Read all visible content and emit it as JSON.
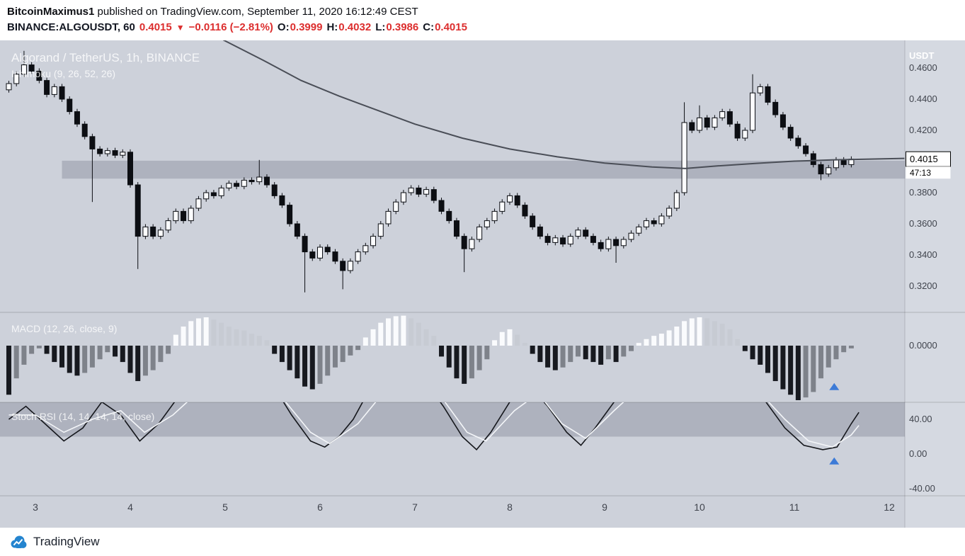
{
  "header": {
    "author": "BitcoinMaximus1",
    "attribution": " published on TradingView.com, September 11, 2020 16:12:49 CEST",
    "quote": {
      "symbol": "BINANCE:ALGOUSDT, 60",
      "last": "0.4015",
      "direction": "▼",
      "change": "−0.0116 (−2.81%)",
      "o_label": "O:",
      "o": "0.3999",
      "h_label": "H:",
      "h": "0.4032",
      "l_label": "L:",
      "l": "0.3986",
      "c_label": "C:",
      "c": "0.4015"
    }
  },
  "footer": {
    "brand": "TradingView"
  },
  "colors": {
    "negative": "#dc2e2e",
    "chart_bg": "#cdd1da",
    "axis_bg": "#d5d9e1",
    "band": "rgba(123,130,144,0.38)",
    "marker_blue": "#3d7bd7",
    "axis_text": "#40444d",
    "overlay_text": "rgba(255,255,255,0.8)",
    "candle": "#0c0e13",
    "baseline": "#4a4e57"
  },
  "chart_data": {
    "type": "candlestick",
    "title": "Algorand / TetherUS, 1h, BINANCE",
    "indicators": {
      "ichimoku_label": "Ichimoku (9, 26, 52, 26)",
      "macd_label": "MACD (12, 26, close, 9)",
      "stoch_label": "Stoch RSI (14, 14, 14, 14, close)"
    },
    "axis_currency": "USDT",
    "price_tag": {
      "price": "0.4015",
      "countdown": "47:13"
    },
    "x_axis": {
      "ticks": [
        3,
        4,
        5,
        6,
        7,
        8,
        9,
        10,
        11,
        12
      ],
      "unit": "September day"
    },
    "price_axis": {
      "range_visible": [
        0.301,
        0.478
      ],
      "ticks": [
        {
          "v": 0.46,
          "label": "0.4600"
        },
        {
          "v": 0.44,
          "label": "0.4400"
        },
        {
          "v": 0.42,
          "label": "0.4200"
        },
        {
          "v": 0.38,
          "label": "0.3800"
        },
        {
          "v": 0.36,
          "label": "0.3600"
        },
        {
          "v": 0.34,
          "label": "0.3400"
        },
        {
          "v": 0.32,
          "label": "0.3200"
        }
      ]
    },
    "macd_axis": {
      "ticks": [
        {
          "v": 0,
          "label": "0.0000"
        }
      ]
    },
    "stoch_axis": {
      "ticks": [
        {
          "v": 40,
          "label": "40.00"
        },
        {
          "v": 0,
          "label": "0.00"
        },
        {
          "v": -40,
          "label": "-40.00"
        }
      ]
    },
    "support_band": {
      "from_t": 3.28,
      "price_top": 0.4005,
      "price_bottom": 0.389
    },
    "candles": {
      "t0": 2.72,
      "dt": 0.08,
      "open_first": 0.446,
      "default_wick": 0.0018,
      "closes": [
        0.45,
        0.456,
        0.462,
        0.458,
        0.452,
        0.443,
        0.448,
        0.44,
        0.432,
        0.424,
        0.416,
        0.408,
        0.405,
        0.407,
        0.404,
        0.406,
        0.385,
        0.352,
        0.358,
        0.352,
        0.356,
        0.362,
        0.368,
        0.362,
        0.37,
        0.376,
        0.38,
        0.378,
        0.383,
        0.386,
        0.384,
        0.388,
        0.387,
        0.39,
        0.385,
        0.378,
        0.372,
        0.36,
        0.352,
        0.342,
        0.338,
        0.345,
        0.342,
        0.336,
        0.33,
        0.336,
        0.342,
        0.346,
        0.352,
        0.36,
        0.368,
        0.374,
        0.38,
        0.383,
        0.379,
        0.382,
        0.375,
        0.368,
        0.362,
        0.352,
        0.344,
        0.35,
        0.358,
        0.362,
        0.368,
        0.374,
        0.378,
        0.372,
        0.365,
        0.358,
        0.352,
        0.348,
        0.351,
        0.347,
        0.352,
        0.356,
        0.352,
        0.348,
        0.344,
        0.35,
        0.346,
        0.35,
        0.354,
        0.358,
        0.362,
        0.36,
        0.365,
        0.37,
        0.38,
        0.425,
        0.42,
        0.428,
        0.422,
        0.428,
        0.432,
        0.424,
        0.415,
        0.42,
        0.444,
        0.448,
        0.438,
        0.43,
        0.422,
        0.415,
        0.41,
        0.405,
        0.398,
        0.392,
        0.396,
        0.401,
        0.398,
        0.4015
      ],
      "wick_overrides": [
        {
          "i": 2,
          "h": 0.471
        },
        {
          "i": 11,
          "l": 0.374
        },
        {
          "i": 17,
          "l": 0.331
        },
        {
          "i": 33,
          "h": 0.401
        },
        {
          "i": 39,
          "l": 0.316
        },
        {
          "i": 44,
          "l": 0.318
        },
        {
          "i": 60,
          "l": 0.329
        },
        {
          "i": 80,
          "l": 0.335
        },
        {
          "i": 89,
          "h": 0.438
        },
        {
          "i": 91,
          "h": 0.436
        },
        {
          "i": 98,
          "h": 0.456
        },
        {
          "i": 107,
          "l": 0.388
        }
      ]
    },
    "baseline": {
      "points": [
        [
          4.98,
          0.478
        ],
        [
          5.4,
          0.465
        ],
        [
          5.8,
          0.452
        ],
        [
          6.2,
          0.442
        ],
        [
          6.6,
          0.433
        ],
        [
          7.0,
          0.424
        ],
        [
          7.5,
          0.415
        ],
        [
          8.0,
          0.408
        ],
        [
          8.5,
          0.403
        ],
        [
          9.0,
          0.399
        ],
        [
          9.5,
          0.3965
        ],
        [
          9.85,
          0.3955
        ],
        [
          10.2,
          0.3972
        ],
        [
          10.6,
          0.3988
        ],
        [
          11.0,
          0.4002
        ],
        [
          11.4,
          0.401
        ],
        [
          12.16,
          0.402
        ]
      ]
    },
    "macd": {
      "values": [
        -0.9,
        -0.6,
        -0.35,
        -0.15,
        -0.05,
        -0.15,
        -0.3,
        -0.4,
        -0.5,
        -0.55,
        -0.5,
        -0.4,
        -0.25,
        -0.12,
        -0.2,
        -0.3,
        -0.5,
        -0.65,
        -0.55,
        -0.45,
        -0.3,
        -0.15,
        0.2,
        0.35,
        0.45,
        0.5,
        0.52,
        0.48,
        0.42,
        0.35,
        0.3,
        0.28,
        0.22,
        0.18,
        0.1,
        -0.15,
        -0.3,
        -0.45,
        -0.6,
        -0.75,
        -0.8,
        -0.7,
        -0.55,
        -0.4,
        -0.3,
        -0.18,
        -0.08,
        0.15,
        0.3,
        0.42,
        0.5,
        0.54,
        0.55,
        0.5,
        0.42,
        0.3,
        0.18,
        -0.2,
        -0.4,
        -0.6,
        -0.7,
        -0.6,
        -0.45,
        -0.25,
        0.1,
        0.25,
        0.3,
        0.2,
        0.05,
        -0.15,
        -0.3,
        -0.4,
        -0.45,
        -0.4,
        -0.3,
        -0.2,
        -0.25,
        -0.3,
        -0.35,
        -0.25,
        -0.3,
        -0.2,
        -0.1,
        0.05,
        0.12,
        0.18,
        0.22,
        0.28,
        0.35,
        0.45,
        0.5,
        0.52,
        0.5,
        0.45,
        0.4,
        0.3,
        0.12,
        -0.1,
        -0.25,
        -0.35,
        -0.5,
        -0.65,
        -0.8,
        -0.9,
        -1.0,
        -0.95,
        -0.85,
        -0.6,
        -0.4,
        -0.25,
        -0.12,
        -0.05
      ]
    },
    "stoch": {
      "band": [
        20,
        80
      ],
      "k": [
        [
          2.72,
          40
        ],
        [
          2.9,
          55
        ],
        [
          3.1,
          35
        ],
        [
          3.3,
          15
        ],
        [
          3.5,
          30
        ],
        [
          3.7,
          60
        ],
        [
          3.9,
          45
        ],
        [
          4.1,
          15
        ],
        [
          4.3,
          35
        ],
        [
          4.5,
          65
        ],
        [
          4.7,
          85
        ],
        [
          4.9,
          75
        ],
        [
          5.1,
          90
        ],
        [
          5.3,
          95
        ],
        [
          5.5,
          80
        ],
        [
          5.7,
          45
        ],
        [
          5.9,
          15
        ],
        [
          6.05,
          8
        ],
        [
          6.2,
          20
        ],
        [
          6.35,
          40
        ],
        [
          6.5,
          70
        ],
        [
          6.7,
          90
        ],
        [
          6.9,
          95
        ],
        [
          7.1,
          85
        ],
        [
          7.3,
          55
        ],
        [
          7.5,
          20
        ],
        [
          7.65,
          5
        ],
        [
          7.8,
          25
        ],
        [
          8.0,
          60
        ],
        [
          8.2,
          80
        ],
        [
          8.4,
          55
        ],
        [
          8.6,
          25
        ],
        [
          8.75,
          10
        ],
        [
          8.9,
          30
        ],
        [
          9.1,
          60
        ],
        [
          9.3,
          85
        ],
        [
          9.5,
          90
        ],
        [
          9.7,
          95
        ],
        [
          9.9,
          98
        ],
        [
          10.1,
          90
        ],
        [
          10.3,
          95
        ],
        [
          10.5,
          85
        ],
        [
          10.7,
          60
        ],
        [
          10.9,
          30
        ],
        [
          11.1,
          10
        ],
        [
          11.3,
          5
        ],
        [
          11.45,
          8
        ],
        [
          11.6,
          35
        ],
        [
          11.68,
          48
        ]
      ],
      "d": [
        [
          2.72,
          45
        ],
        [
          3.0,
          45
        ],
        [
          3.3,
          25
        ],
        [
          3.6,
          40
        ],
        [
          3.9,
          50
        ],
        [
          4.15,
          25
        ],
        [
          4.45,
          45
        ],
        [
          4.75,
          75
        ],
        [
          5.05,
          82
        ],
        [
          5.35,
          88
        ],
        [
          5.6,
          65
        ],
        [
          5.9,
          25
        ],
        [
          6.1,
          12
        ],
        [
          6.4,
          35
        ],
        [
          6.7,
          75
        ],
        [
          7.0,
          90
        ],
        [
          7.25,
          70
        ],
        [
          7.55,
          25
        ],
        [
          7.75,
          15
        ],
        [
          8.05,
          50
        ],
        [
          8.3,
          70
        ],
        [
          8.55,
          35
        ],
        [
          8.8,
          18
        ],
        [
          9.1,
          50
        ],
        [
          9.4,
          80
        ],
        [
          9.7,
          90
        ],
        [
          10.0,
          93
        ],
        [
          10.3,
          92
        ],
        [
          10.6,
          75
        ],
        [
          10.9,
          40
        ],
        [
          11.15,
          15
        ],
        [
          11.4,
          8
        ],
        [
          11.6,
          22
        ],
        [
          11.68,
          33
        ]
      ]
    },
    "markers": [
      {
        "pane": "macd",
        "t": 11.42,
        "value": -0.75,
        "shape": "triangle-up"
      },
      {
        "pane": "stoch",
        "t": 11.42,
        "value": -8,
        "shape": "triangle-up"
      }
    ]
  }
}
